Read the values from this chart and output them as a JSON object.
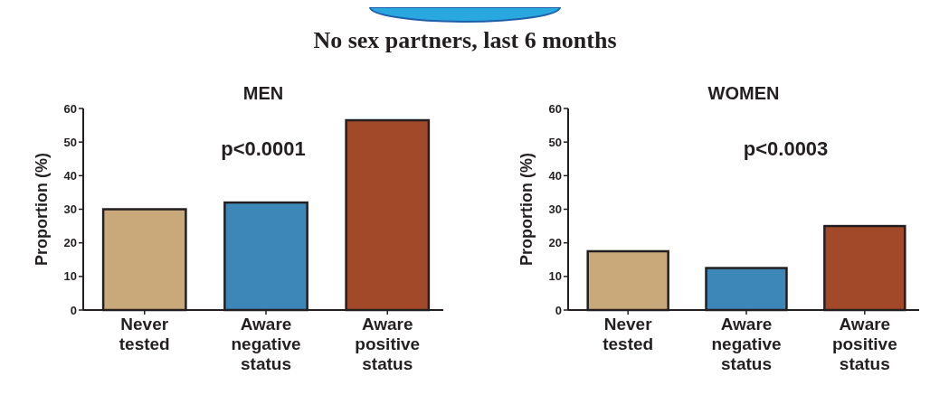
{
  "chart_data": [
    {
      "type": "bar",
      "title": "MEN",
      "ylabel": "Proportion (%)",
      "categories": [
        "Never tested",
        "Aware negative status",
        "Aware positive status"
      ],
      "values": [
        30,
        32,
        56.5
      ],
      "colors": [
        "#c9a979",
        "#3d86b8",
        "#a2492a"
      ],
      "ylim": [
        0,
        60
      ],
      "yticks": [
        0,
        10,
        20,
        30,
        40,
        50,
        60
      ],
      "grid": false,
      "annotations": [
        "No sex partners, last 6 months",
        "p<0.0001"
      ]
    },
    {
      "type": "bar",
      "title": "WOMEN",
      "ylabel": "Proportion (%)",
      "categories": [
        "Never tested",
        "Aware negative status",
        "Aware positive status"
      ],
      "values": [
        17.5,
        12.5,
        25
      ],
      "colors": [
        "#c9a979",
        "#3d86b8",
        "#a2492a"
      ],
      "ylim": [
        0,
        60
      ],
      "yticks": [
        0,
        10,
        20,
        30,
        40,
        50,
        60
      ],
      "grid": false,
      "annotations": [
        "p<0.0003"
      ]
    }
  ]
}
